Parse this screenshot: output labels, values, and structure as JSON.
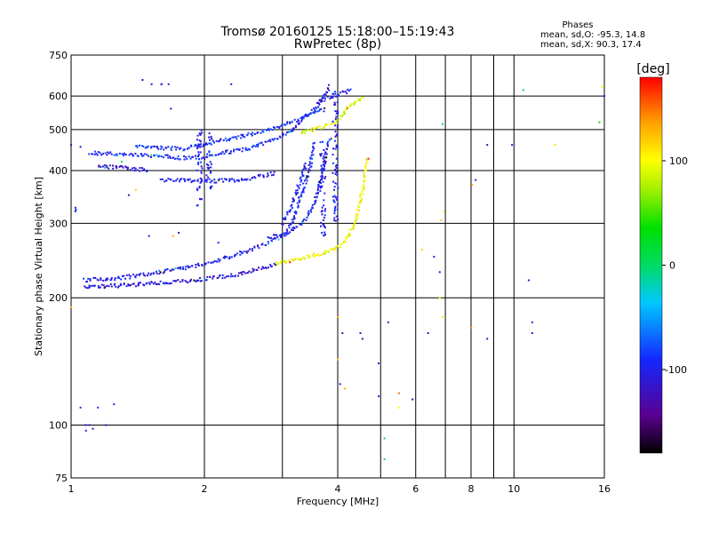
{
  "chart_data": {
    "type": "scatter",
    "title": "Tromsø 20160125 15:18:00–15:19:43",
    "subtitle": "RwPretec (8p)",
    "xlabel": "Frequency [MHz]",
    "ylabel": "Stationary phase Virtual Height [km]",
    "x_scale": "log",
    "y_scale": "log",
    "xlim": [
      1,
      16
    ],
    "ylim": [
      75,
      750
    ],
    "x_ticks": [
      1,
      2,
      4,
      6,
      8,
      10,
      16
    ],
    "x_gridlines": [
      2,
      3,
      4,
      5,
      6,
      7,
      8,
      9,
      10
    ],
    "y_ticks": [
      75,
      100,
      200,
      300,
      400,
      500,
      600,
      750
    ],
    "y_gridlines": [
      100,
      200,
      300,
      400,
      500,
      600
    ],
    "grid": true,
    "stats": {
      "heading": "Phases",
      "line_o": "mean, sd,O: -95.3, 14.8",
      "line_x": "mean, sd,X:  90.3, 17.4"
    },
    "colorbar": {
      "label": "[deg]",
      "range": [
        -180,
        180
      ],
      "ticks": [
        100,
        0,
        -100
      ],
      "colors": [
        "#000000",
        "#5a0090",
        "#1428ff",
        "#00c8ff",
        "#00dc64",
        "#00e000",
        "#a0f000",
        "#ffff00",
        "#ffa000",
        "#ff0000"
      ]
    },
    "series": [
      {
        "traces": [
          {
            "points": [
              [
                1.07,
                212
              ],
              [
                1.12,
                213
              ],
              [
                1.2,
                213
              ],
              [
                1.3,
                214
              ],
              [
                1.4,
                215
              ],
              [
                1.55,
                217
              ],
              [
                1.7,
                218
              ],
              [
                1.9,
                220
              ],
              [
                2.1,
                223
              ],
              [
                2.3,
                226
              ],
              [
                2.55,
                231
              ],
              [
                2.75,
                236
              ],
              [
                2.9,
                241
              ]
            ],
            "phase": -110
          },
          {
            "points": [
              [
                2.9,
                241
              ],
              [
                3.1,
                245
              ],
              [
                3.3,
                248
              ],
              [
                3.5,
                252
              ],
              [
                3.7,
                255
              ],
              [
                3.9,
                260
              ],
              [
                4.05,
                265
              ],
              [
                4.2,
                275
              ],
              [
                4.35,
                295
              ],
              [
                4.45,
                320
              ],
              [
                4.55,
                360
              ],
              [
                4.62,
                400
              ],
              [
                4.67,
                430
              ]
            ],
            "phase": 100
          },
          {
            "points": [
              [
                1.07,
                220
              ],
              [
                1.3,
                223
              ],
              [
                1.6,
                230
              ],
              [
                1.9,
                238
              ],
              [
                2.2,
                247
              ],
              [
                2.5,
                258
              ],
              [
                2.8,
                270
              ],
              [
                3.1,
                285
              ],
              [
                3.35,
                302
              ],
              [
                3.55,
                335
              ],
              [
                3.7,
                400
              ],
              [
                3.8,
                460
              ],
              [
                3.85,
                480
              ]
            ],
            "phase": -100
          },
          {
            "points": [
              [
                2.8,
                278
              ],
              [
                3.05,
                285
              ],
              [
                3.15,
                300
              ],
              [
                3.25,
                330
              ],
              [
                3.35,
                365
              ],
              [
                3.45,
                400
              ],
              [
                3.55,
                470
              ]
            ],
            "phase": -95
          },
          {
            "points": [
              [
                3.0,
                300
              ],
              [
                3.15,
                330
              ],
              [
                3.3,
                380
              ],
              [
                3.4,
                420
              ]
            ],
            "phase": -100
          },
          {
            "points": [
              [
                1.1,
                440
              ],
              [
                1.25,
                438
              ],
              [
                1.4,
                436
              ],
              [
                1.6,
                432
              ],
              [
                1.8,
                428
              ],
              [
                2.0,
                430
              ],
              [
                2.2,
                440
              ],
              [
                2.5,
                450
              ],
              [
                2.75,
                465
              ],
              [
                2.95,
                480
              ],
              [
                3.15,
                500
              ],
              [
                3.35,
                530
              ],
              [
                3.55,
                560
              ],
              [
                3.7,
                590
              ],
              [
                3.8,
                620
              ],
              [
                3.85,
                640
              ]
            ],
            "phase": -95
          },
          {
            "points": [
              [
                1.4,
                456
              ],
              [
                1.6,
                452
              ],
              [
                1.8,
                450
              ],
              [
                2.0,
                462
              ],
              [
                2.3,
                476
              ],
              [
                2.6,
                490
              ],
              [
                2.9,
                505
              ],
              [
                3.2,
                525
              ],
              [
                3.5,
                545
              ],
              [
                3.75,
                560
              ]
            ],
            "phase": -90
          },
          {
            "points": [
              [
                1.6,
                380
              ],
              [
                1.9,
                378
              ],
              [
                2.1,
                378
              ],
              [
                2.4,
                380
              ],
              [
                2.7,
                388
              ],
              [
                2.9,
                395
              ]
            ],
            "phase": -100
          },
          {
            "points": [
              [
                3.3,
                490
              ],
              [
                3.5,
                500
              ],
              [
                3.75,
                510
              ],
              [
                3.95,
                520
              ],
              [
                4.05,
                535
              ],
              [
                4.2,
                560
              ],
              [
                4.4,
                580
              ],
              [
                4.6,
                600
              ]
            ],
            "phase": 90
          },
          {
            "points": [
              [
                3.6,
                580
              ],
              [
                3.9,
                600
              ],
              [
                4.1,
                610
              ],
              [
                4.3,
                620
              ]
            ],
            "phase": -100
          },
          {
            "points": [
              [
                1.15,
                410
              ],
              [
                1.35,
                405
              ],
              [
                1.5,
                400
              ]
            ],
            "phase": -110
          }
        ],
        "vertical_clusters": [
          {
            "x": 1.95,
            "h": [
              330,
              500
            ],
            "phase": -100
          },
          {
            "x": 2.05,
            "h": [
              360,
              490
            ],
            "phase": -100
          },
          {
            "x": 3.95,
            "h": [
              300,
              620
            ],
            "phase": -100
          },
          {
            "x": 3.7,
            "h": [
              280,
              470
            ],
            "phase": -100
          },
          {
            "x": 1.03,
            "h": [
              320,
              330
            ],
            "phase": -100
          }
        ],
        "scattered_points": [
          [
            1.45,
            655,
            -130
          ],
          [
            1.52,
            640,
            -110
          ],
          [
            1.6,
            640,
            -100
          ],
          [
            1.6,
            640,
            -110
          ],
          [
            1.66,
            640,
            -110
          ],
          [
            1.68,
            560,
            -120
          ],
          [
            2.3,
            640,
            -100
          ],
          [
            1.3,
            420,
            20
          ],
          [
            1.35,
            350,
            -120
          ],
          [
            1.4,
            360,
            120
          ],
          [
            1.5,
            280,
            -110
          ],
          [
            1.7,
            280,
            130
          ],
          [
            1.75,
            285,
            -120
          ],
          [
            2.15,
            270,
            -100
          ],
          [
            1.05,
            110,
            -90
          ],
          [
            1.08,
            97,
            -100
          ],
          [
            1.12,
            98,
            -110
          ],
          [
            1.2,
            100,
            -100
          ],
          [
            1.15,
            110,
            -90
          ],
          [
            1.1,
            100,
            -110
          ],
          [
            1.25,
            112,
            -100
          ],
          [
            1.0,
            190,
            130
          ],
          [
            1.08,
            100,
            -110
          ],
          [
            1.0,
            460,
            -120
          ],
          [
            1.05,
            455,
            -110
          ],
          [
            4.0,
            180,
            130
          ],
          [
            4.1,
            165,
            -120
          ],
          [
            4.0,
            143,
            120
          ],
          [
            4.05,
            125,
            -110
          ],
          [
            4.15,
            122,
            130
          ],
          [
            4.5,
            165,
            -120
          ],
          [
            4.55,
            160,
            -130
          ],
          [
            4.95,
            140,
            -120
          ],
          [
            4.95,
            117,
            -110
          ],
          [
            5.1,
            93,
            0
          ],
          [
            5.1,
            83,
            -20
          ],
          [
            5.5,
            110,
            100
          ],
          [
            5.2,
            175,
            -110
          ],
          [
            5.5,
            119,
            150
          ],
          [
            5.9,
            115,
            -120
          ],
          [
            6.2,
            260,
            120
          ],
          [
            6.6,
            250,
            -110
          ],
          [
            6.4,
            165,
            -130
          ],
          [
            6.8,
            230,
            -120
          ],
          [
            6.9,
            180,
            110
          ],
          [
            6.8,
            200,
            110
          ],
          [
            8.0,
            170,
            140
          ],
          [
            8.05,
            370,
            130
          ],
          [
            8.2,
            380,
            -90
          ],
          [
            8.7,
            160,
            -120
          ],
          [
            8.7,
            460,
            -130
          ],
          [
            9.9,
            460,
            -110
          ],
          [
            10.5,
            620,
            0
          ],
          [
            10.8,
            220,
            -110
          ],
          [
            11,
            175,
            -100
          ],
          [
            11,
            165,
            -110
          ],
          [
            12.4,
            460,
            110
          ],
          [
            15.8,
            630,
            100
          ],
          [
            16,
            600,
            -110
          ],
          [
            15.6,
            520,
            20
          ],
          [
            6.9,
            515,
            -20
          ],
          [
            6.85,
            305,
            120
          ],
          [
            6.95,
            320,
            110
          ]
        ]
      }
    ]
  }
}
